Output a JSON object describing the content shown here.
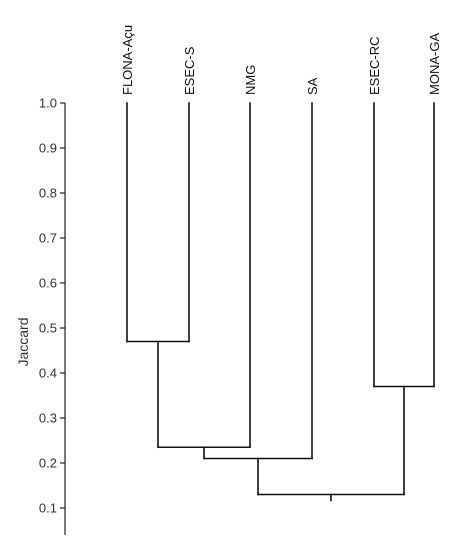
{
  "chart_data": {
    "type": "dendrogram",
    "title": "",
    "xlabel": "",
    "ylabel": "Jaccard",
    "ylim": [
      0.05,
      1.0
    ],
    "yticks": [
      0.1,
      0.2,
      0.3,
      0.4,
      0.5,
      0.6,
      0.7,
      0.8,
      0.9,
      1.0
    ],
    "ytick_labels": [
      "0.1",
      "0.2",
      "0.3",
      "0.4",
      "0.5",
      "0.6",
      "0.7",
      "0.8",
      "0.9",
      "1.0"
    ],
    "leaves": [
      "FLONA-Açu",
      "ESEC-S",
      "NMG",
      "SA",
      "ESEC-RC",
      "MONA-GA"
    ],
    "merges": [
      {
        "left": "FLONA-Açu",
        "right": "ESEC-S",
        "similarity": 0.47
      },
      {
        "left": "ESEC-RC",
        "right": "MONA-GA",
        "similarity": 0.37
      },
      {
        "left": "FLONA-Açu+ESEC-S",
        "right": "NMG",
        "similarity": 0.235
      },
      {
        "left": "FLONA-Açu+ESEC-S+NMG",
        "right": "SA",
        "similarity": 0.21
      },
      {
        "left": "FLONA-Açu+ESEC-S+NMG+SA",
        "right": "ESEC-RC+MONA-GA",
        "similarity": 0.13
      }
    ],
    "grid": false,
    "colors": {
      "line": "#111111",
      "axis": "#222222",
      "text": "#333333"
    }
  }
}
